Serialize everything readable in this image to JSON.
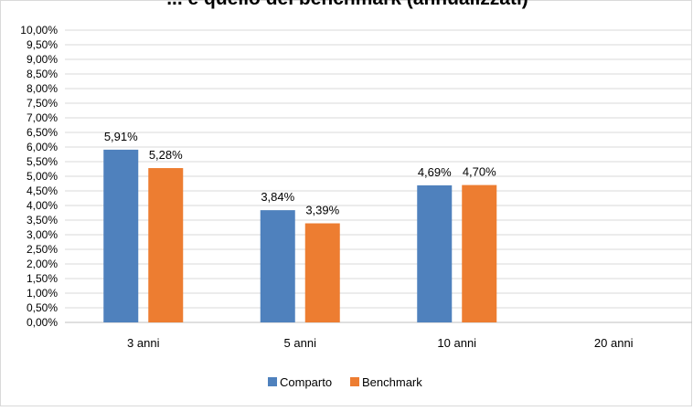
{
  "chart_data": {
    "type": "bar",
    "title": "... e quello del benchmark (annualizzati)",
    "categories": [
      "3 anni",
      "5 anni",
      "10 anni",
      "20 anni"
    ],
    "series": [
      {
        "name": "Comparto",
        "color": "#4f81bd",
        "values": [
          5.91,
          3.84,
          4.69,
          null
        ],
        "labels": [
          "5,91%",
          "3,84%",
          "4,69%",
          ""
        ]
      },
      {
        "name": "Benchmark",
        "color": "#ed7d31",
        "values": [
          5.28,
          3.39,
          4.7,
          null
        ],
        "labels": [
          "5,28%",
          "3,39%",
          "4,70%",
          ""
        ]
      }
    ],
    "ylim": [
      0,
      10
    ],
    "ytick_step": 0.5,
    "ytick_labels": [
      "0,00%",
      "0,50%",
      "1,00%",
      "1,50%",
      "2,00%",
      "2,50%",
      "3,00%",
      "3,50%",
      "4,00%",
      "4,50%",
      "5,00%",
      "5,50%",
      "6,00%",
      "6,50%",
      "7,00%",
      "7,50%",
      "8,00%",
      "8,50%",
      "9,00%",
      "9,50%",
      "10,00%"
    ],
    "grid": true,
    "legend_position": "bottom",
    "xlabel": "",
    "ylabel": ""
  }
}
